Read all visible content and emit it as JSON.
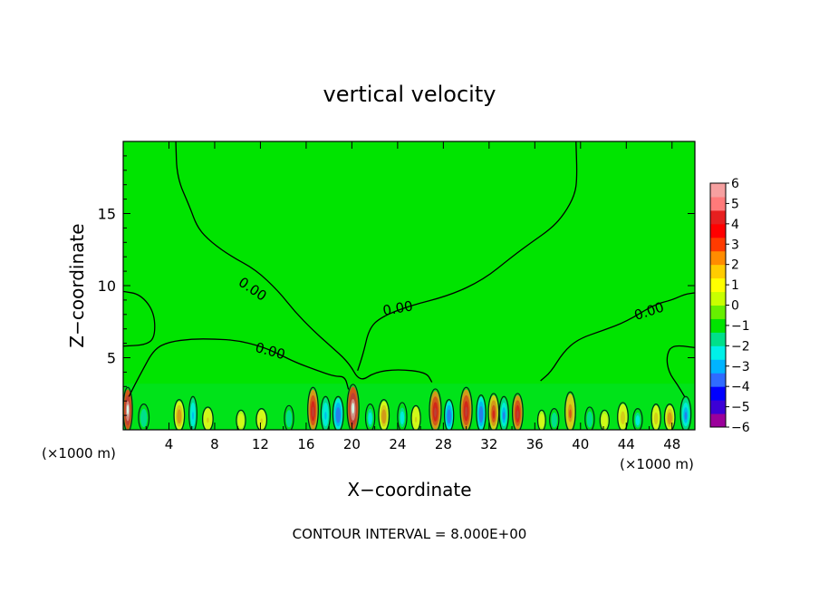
{
  "chart_data": {
    "type": "heatmap",
    "title": "vertical velocity",
    "xlabel": "X−coordinate",
    "ylabel": "Z−coordinate",
    "x_unit_left": "(×1000 m)",
    "x_unit_right": "(×1000 m)",
    "xlim": [
      0,
      50
    ],
    "ylim": [
      0,
      20
    ],
    "xticks": [
      4,
      8,
      12,
      16,
      20,
      24,
      28,
      32,
      36,
      40,
      44,
      48
    ],
    "xtick_labels": [
      "4",
      "8",
      "12",
      "16",
      "20",
      "24",
      "28",
      "32",
      "36",
      "40",
      "44",
      "48"
    ],
    "yticks": [
      5,
      10,
      15
    ],
    "ytick_labels": [
      "5",
      "10",
      "15"
    ],
    "footer": "CONTOUR INTERVAL = 8.000E+00",
    "background_value": 0,
    "colorbar": {
      "min": -6,
      "max": 6,
      "ticks": [
        "6",
        "5",
        "4",
        "3",
        "2",
        "1",
        "0",
        "−1",
        "−2",
        "−3",
        "−4",
        "−5",
        "−6"
      ],
      "colors": [
        "#9b009b",
        "#3c00d6",
        "#0000ff",
        "#2f6bff",
        "#00b4ff",
        "#00f0e8",
        "#00e08a",
        "#00e400",
        "#66ef00",
        "#c8ff00",
        "#ffff00",
        "#ffcc00",
        "#ff8c00",
        "#ff3b00",
        "#ff0000",
        "#e61f1f",
        "#ff7a7a",
        "#f6a0a0"
      ]
    },
    "contour_labels": [
      "0.00",
      "0.00",
      "0.00",
      "0.00"
    ],
    "contours": [
      {
        "name": "contour-left-pocket",
        "points": [
          [
            0,
            9.6
          ],
          [
            1.5,
            9.4
          ],
          [
            2.7,
            8.2
          ],
          [
            2.8,
            6.5
          ],
          [
            2.1,
            5.9
          ],
          [
            0,
            5.8
          ]
        ]
      },
      {
        "name": "contour-upper-left-valley",
        "points": [
          [
            4.6,
            20
          ],
          [
            4.7,
            17.5
          ],
          [
            5.8,
            15.5
          ],
          [
            6.5,
            14.0
          ],
          [
            7.7,
            13.0
          ],
          [
            9.5,
            12.0
          ],
          [
            11.6,
            11.1
          ],
          [
            13.6,
            9.6
          ],
          [
            15.0,
            8.2
          ],
          [
            16.6,
            6.9
          ],
          [
            18.0,
            5.9
          ],
          [
            19.7,
            4.7
          ],
          [
            20.7,
            3.3
          ],
          [
            22.0,
            4.0
          ],
          [
            24.0,
            4.2
          ],
          [
            26.5,
            4.0
          ],
          [
            27.0,
            3.3
          ]
        ]
      },
      {
        "name": "contour-lower-left-layer",
        "points": [
          [
            0.5,
            2.3
          ],
          [
            1.0,
            3.1
          ],
          [
            1.6,
            4.0
          ],
          [
            2.7,
            5.6
          ],
          [
            4.0,
            6.1
          ],
          [
            6.0,
            6.3
          ],
          [
            8.0,
            6.3
          ],
          [
            10.0,
            6.2
          ],
          [
            12.0,
            5.8
          ],
          [
            13.5,
            5.3
          ],
          [
            15.0,
            4.7
          ],
          [
            17.0,
            4.1
          ],
          [
            18.5,
            3.7
          ],
          [
            19.4,
            3.7
          ],
          [
            19.7,
            2.8
          ]
        ]
      },
      {
        "name": "contour-center-right-ridge",
        "points": [
          [
            20.5,
            4.1
          ],
          [
            21.0,
            5.3
          ],
          [
            21.5,
            7.0
          ],
          [
            22.5,
            7.8
          ],
          [
            25.0,
            8.6
          ],
          [
            28.5,
            9.3
          ],
          [
            31.5,
            10.4
          ],
          [
            34.0,
            12.0
          ],
          [
            35.7,
            13.0
          ],
          [
            37.5,
            14.0
          ],
          [
            38.6,
            15.0
          ],
          [
            39.5,
            16.3
          ],
          [
            39.7,
            17.5
          ],
          [
            39.6,
            20
          ]
        ]
      },
      {
        "name": "contour-right-shelf",
        "points": [
          [
            36.5,
            3.4
          ],
          [
            37.4,
            4.0
          ],
          [
            38.5,
            5.4
          ],
          [
            39.8,
            6.3
          ],
          [
            42.0,
            6.9
          ],
          [
            44.0,
            7.5
          ],
          [
            46.5,
            8.7
          ],
          [
            48.0,
            9.0
          ],
          [
            49.1,
            9.4
          ],
          [
            50,
            9.5
          ]
        ]
      },
      {
        "name": "contour-right-lower-pocket",
        "points": [
          [
            50,
            5.7
          ],
          [
            48.0,
            5.9
          ],
          [
            47.5,
            5.1
          ],
          [
            47.7,
            4.0
          ],
          [
            48.5,
            3.1
          ],
          [
            49.1,
            2.3
          ]
        ]
      }
    ],
    "cells": [
      {
        "x": 0.4,
        "w": 0.7,
        "h": 2.8,
        "v": 6
      },
      {
        "x": 1.8,
        "w": 0.8,
        "h": 1.7,
        "v": -2
      },
      {
        "x": 4.9,
        "w": 0.8,
        "h": 2.0,
        "v": 2.5
      },
      {
        "x": 6.1,
        "w": 0.6,
        "h": 2.2,
        "v": -3
      },
      {
        "x": 7.4,
        "w": 0.8,
        "h": 1.5,
        "v": 1.5
      },
      {
        "x": 10.3,
        "w": 0.7,
        "h": 1.3,
        "v": 1.2
      },
      {
        "x": 12.1,
        "w": 0.8,
        "h": 1.4,
        "v": 1.5
      },
      {
        "x": 14.5,
        "w": 0.7,
        "h": 1.6,
        "v": -2
      },
      {
        "x": 16.6,
        "w": 0.8,
        "h": 2.8,
        "v": 4.5
      },
      {
        "x": 17.7,
        "w": 0.7,
        "h": 2.2,
        "v": -3
      },
      {
        "x": 18.8,
        "w": 0.8,
        "h": 2.2,
        "v": -4
      },
      {
        "x": 20.1,
        "w": 0.9,
        "h": 3.0,
        "v": 6
      },
      {
        "x": 21.6,
        "w": 0.7,
        "h": 1.7,
        "v": -2.5
      },
      {
        "x": 22.8,
        "w": 0.8,
        "h": 2.0,
        "v": 2.5
      },
      {
        "x": 24.4,
        "w": 0.7,
        "h": 1.8,
        "v": -2.5
      },
      {
        "x": 25.6,
        "w": 0.7,
        "h": 1.6,
        "v": 1.5
      },
      {
        "x": 27.3,
        "w": 0.9,
        "h": 2.7,
        "v": 4.5
      },
      {
        "x": 28.5,
        "w": 0.7,
        "h": 2.0,
        "v": -4
      },
      {
        "x": 30.0,
        "w": 0.9,
        "h": 2.8,
        "v": 4.5
      },
      {
        "x": 31.3,
        "w": 0.7,
        "h": 2.3,
        "v": -4
      },
      {
        "x": 32.4,
        "w": 0.8,
        "h": 2.4,
        "v": 3.5
      },
      {
        "x": 33.3,
        "w": 0.7,
        "h": 2.2,
        "v": -3.5
      },
      {
        "x": 34.5,
        "w": 0.8,
        "h": 2.4,
        "v": 4.2
      },
      {
        "x": 36.6,
        "w": 0.6,
        "h": 1.3,
        "v": 1.2
      },
      {
        "x": 37.7,
        "w": 0.7,
        "h": 1.4,
        "v": -2
      },
      {
        "x": 39.1,
        "w": 0.8,
        "h": 2.5,
        "v": 2.8
      },
      {
        "x": 40.8,
        "w": 0.7,
        "h": 1.5,
        "v": -2
      },
      {
        "x": 42.1,
        "w": 0.7,
        "h": 1.3,
        "v": 1.2
      },
      {
        "x": 43.7,
        "w": 0.8,
        "h": 1.8,
        "v": 1.8
      },
      {
        "x": 45.0,
        "w": 0.7,
        "h": 1.4,
        "v": -2.5
      },
      {
        "x": 46.6,
        "w": 0.7,
        "h": 1.7,
        "v": 1.8
      },
      {
        "x": 47.8,
        "w": 0.8,
        "h": 1.7,
        "v": 2.5
      },
      {
        "x": 49.2,
        "w": 0.8,
        "h": 2.2,
        "v": -3.5
      }
    ]
  }
}
